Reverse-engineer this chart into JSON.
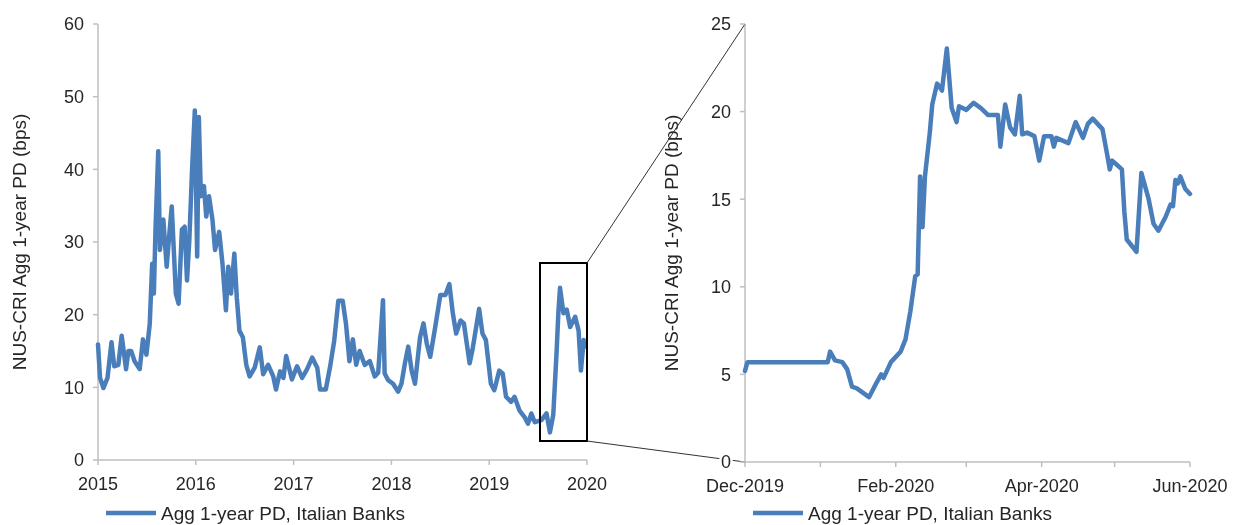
{
  "chart_data": [
    {
      "type": "line",
      "ylabel": "NUS-CRI Agg 1-year PD (bps)",
      "xlim": [
        2015,
        2020
      ],
      "xticks": [
        2015,
        2016,
        2017,
        2018,
        2019,
        2020
      ],
      "ylim": [
        0,
        60
      ],
      "yticks": [
        0,
        10,
        20,
        30,
        40,
        50,
        60
      ],
      "legend": "bottom",
      "x": [
        2015.0,
        2015.021,
        2015.055,
        2015.097,
        2015.138,
        2015.166,
        2015.208,
        2015.242,
        2015.287,
        2015.311,
        2015.339,
        2015.374,
        2015.426,
        2015.46,
        2015.495,
        2015.529,
        2015.554,
        2015.571,
        2015.588,
        2015.616,
        2015.633,
        2015.668,
        2015.702,
        2015.727,
        2015.754,
        2015.796,
        2015.824,
        2015.858,
        2015.886,
        2015.91,
        2015.934,
        2015.962,
        2015.99,
        2016.014,
        2016.031,
        2016.052,
        2016.083,
        2016.107,
        2016.135,
        2016.17,
        2016.197,
        2016.239,
        2016.273,
        2016.308,
        2016.332,
        2016.36,
        2016.394,
        2016.419,
        2016.446,
        2016.481,
        2016.516,
        2016.55,
        2016.602,
        2016.654,
        2016.689,
        2016.74,
        2016.792,
        2016.82,
        2016.862,
        2016.896,
        2016.924,
        2016.983,
        2017.035,
        2017.087,
        2017.138,
        2017.19,
        2017.242,
        2017.27,
        2017.329,
        2017.374,
        2017.415,
        2017.457,
        2017.502,
        2017.536,
        2017.571,
        2017.606,
        2017.64,
        2017.675,
        2017.727,
        2017.779,
        2017.83,
        2017.865,
        2017.914,
        2017.931,
        2017.966,
        2018.017,
        2018.069,
        2018.103,
        2018.138,
        2018.172,
        2018.207,
        2018.241,
        2018.293,
        2018.328,
        2018.362,
        2018.397,
        2018.448,
        2018.5,
        2018.552,
        2018.593,
        2018.628,
        2018.662,
        2018.707,
        2018.741,
        2018.8,
        2018.828,
        2018.897,
        2018.931,
        2018.966,
        2019.017,
        2019.052,
        2019.103,
        2019.138,
        2019.172,
        2019.224,
        2019.259,
        2019.31,
        2019.362,
        2019.397,
        2019.431,
        2019.466,
        2019.534,
        2019.586,
        2019.621,
        2019.655,
        2019.69,
        2019.707,
        2019.724,
        2019.759,
        2019.793,
        2019.828,
        2019.879,
        2019.914,
        2019.938,
        2019.966,
        2019.983
      ],
      "series": [
        {
          "name": "Agg 1-year PD, Italian Banks",
          "color": "#4a7ebb",
          "values": [
            15.9,
            11.3,
            9.9,
            11.3,
            16.2,
            12.9,
            13.1,
            17.1,
            12.5,
            15.0,
            15.0,
            13.6,
            12.5,
            16.6,
            14.5,
            18.7,
            27.0,
            22.9,
            31.7,
            42.5,
            28.9,
            33.1,
            26.6,
            30.7,
            34.9,
            22.9,
            21.5,
            31.7,
            32.1,
            24.7,
            30.3,
            40.0,
            48.1,
            28.0,
            47.2,
            36.3,
            37.7,
            33.5,
            36.3,
            33.1,
            28.9,
            31.4,
            27.0,
            20.6,
            26.6,
            22.9,
            28.4,
            22.4,
            17.8,
            16.9,
            13.1,
            11.5,
            12.7,
            15.5,
            11.8,
            13.1,
            11.5,
            9.7,
            12.2,
            11.3,
            14.3,
            11.1,
            12.9,
            11.3,
            12.5,
            14.1,
            12.7,
            9.7,
            9.7,
            12.9,
            16.4,
            21.9,
            21.9,
            18.7,
            13.6,
            16.6,
            13.1,
            15.0,
            13.1,
            13.6,
            11.5,
            12.0,
            22.0,
            11.9,
            11.0,
            10.5,
            9.4,
            10.5,
            13.3,
            15.6,
            12.3,
            10.5,
            16.9,
            18.8,
            16.0,
            14.2,
            18.3,
            22.7,
            22.7,
            24.2,
            20.2,
            17.4,
            19.2,
            18.8,
            13.3,
            15.1,
            20.8,
            17.4,
            16.5,
            10.5,
            9.6,
            12.3,
            11.9,
            8.7,
            8.0,
            8.7,
            6.8,
            5.9,
            5.0,
            6.4,
            5.2,
            5.5,
            6.4,
            3.8,
            6.2,
            15.1,
            20.2,
            23.7,
            20.2,
            20.7,
            18.3,
            19.7,
            17.8,
            12.3,
            16.5,
            15.6
          ]
        }
      ]
    },
    {
      "type": "line",
      "ylabel": "NUS-CRI Agg 1-year PD (bps)",
      "xlim": [
        "2019-12-01",
        "2020-06-01"
      ],
      "xticks": [
        {
          "value": "2019-12-01",
          "label": "Dec-2019"
        },
        {
          "value": "2020-01-01",
          "label": null
        },
        {
          "value": "2020-02-01",
          "label": "Feb-2020"
        },
        {
          "value": "2020-03-01",
          "label": null
        },
        {
          "value": "2020-04-01",
          "label": "Apr-2020"
        },
        {
          "value": "2020-05-01",
          "label": null
        },
        {
          "value": "2020-06-01",
          "label": "Jun-2020"
        }
      ],
      "ylim": [
        0,
        25
      ],
      "yticks": [
        0,
        5,
        10,
        15,
        20,
        25
      ],
      "legend": "bottom",
      "x": [
        "2019-12-01",
        "2019-12-02",
        "2020-01-04",
        "2020-01-05",
        "2020-01-07",
        "2020-01-10",
        "2020-01-12",
        "2020-01-14",
        "2020-01-16",
        "2020-01-21",
        "2020-01-24",
        "2020-01-26",
        "2020-01-27",
        "2020-01-30",
        "2020-02-03",
        "2020-02-05",
        "2020-02-07",
        "2020-02-09",
        "2020-02-10",
        "2020-02-11",
        "2020-02-12",
        "2020-02-13",
        "2020-02-15",
        "2020-02-16",
        "2020-02-18",
        "2020-02-20",
        "2020-02-22",
        "2020-02-24",
        "2020-02-26",
        "2020-02-27",
        "2020-03-01",
        "2020-03-04",
        "2020-03-07",
        "2020-03-10",
        "2020-03-14",
        "2020-03-15",
        "2020-03-17",
        "2020-03-19",
        "2020-03-21",
        "2020-03-23",
        "2020-03-24",
        "2020-03-26",
        "2020-03-29",
        "2020-03-31",
        "2020-04-02",
        "2020-04-05",
        "2020-04-06",
        "2020-04-07",
        "2020-04-12",
        "2020-04-15",
        "2020-04-18",
        "2020-04-20",
        "2020-04-22",
        "2020-04-26",
        "2020-04-28",
        "2020-04-29",
        "2020-04-30",
        "2020-05-04",
        "2020-05-05",
        "2020-05-06",
        "2020-05-10",
        "2020-05-12",
        "2020-05-15",
        "2020-05-17",
        "2020-05-19",
        "2020-05-22",
        "2020-05-24",
        "2020-05-25",
        "2020-05-26",
        "2020-05-27",
        "2020-05-28",
        "2020-05-30",
        "2020-06-01"
      ],
      "series": [
        {
          "name": "Agg 1-year PD, Italian Banks",
          "color": "#4a7ebb",
          "values": [
            5.2,
            5.7,
            5.7,
            6.3,
            5.8,
            5.7,
            5.3,
            4.3,
            4.2,
            3.7,
            4.5,
            5.0,
            4.8,
            5.7,
            6.3,
            7.0,
            8.6,
            10.6,
            10.7,
            16.3,
            13.4,
            16.3,
            18.8,
            20.4,
            21.6,
            21.2,
            23.6,
            20.2,
            19.4,
            20.3,
            20.1,
            20.5,
            20.2,
            19.8,
            19.8,
            18.0,
            20.4,
            19.1,
            18.7,
            20.9,
            18.7,
            18.8,
            18.6,
            17.2,
            18.6,
            18.6,
            18.0,
            18.5,
            18.2,
            19.4,
            18.5,
            19.3,
            19.6,
            19.0,
            17.5,
            16.7,
            17.2,
            16.7,
            14.3,
            12.7,
            12.0,
            16.5,
            15.0,
            13.6,
            13.2,
            14.0,
            14.7,
            14.6,
            16.1,
            15.9,
            16.3,
            15.6,
            15.3
          ]
        }
      ]
    }
  ]
}
